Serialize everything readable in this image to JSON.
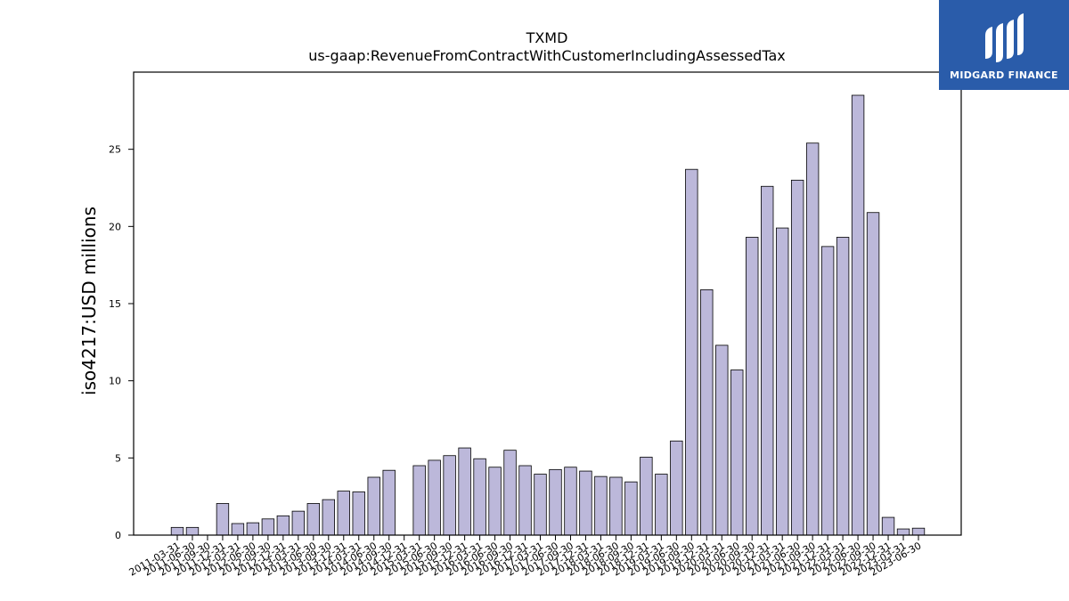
{
  "chart_data": {
    "type": "bar",
    "title": "TXMD",
    "subtitle": "us-gaap:RevenueFromContractWithCustomerIncludingAssessedTax",
    "ylabel": "iso4217:USD  millions",
    "xlabel": "",
    "ylim": [
      0,
      30
    ],
    "yticks": [
      0,
      5,
      10,
      15,
      20,
      25
    ],
    "grid": false,
    "bar_color": "#bcb8da",
    "edge_color": "#000000",
    "categories": [
      "2011-03-31",
      "2011-06-30",
      "2011-09-30",
      "2011-12-31",
      "2012-03-31",
      "2012-06-30",
      "2012-09-30",
      "2012-12-31",
      "2013-03-31",
      "2013-06-30",
      "2013-09-30",
      "2013-12-31",
      "2014-03-31",
      "2014-06-30",
      "2014-09-30",
      "2014-12-31",
      "2015-03-31",
      "2015-06-30",
      "2015-09-30",
      "2015-12-31",
      "2016-03-31",
      "2016-06-30",
      "2016-09-30",
      "2016-12-31",
      "2017-03-31",
      "2017-06-30",
      "2017-09-30",
      "2017-12-31",
      "2018-03-31",
      "2018-06-30",
      "2018-09-30",
      "2018-12-31",
      "2019-03-31",
      "2019-06-30",
      "2019-09-30",
      "2019-12-31",
      "2020-03-31",
      "2020-06-30",
      "2020-09-30",
      "2020-12-31",
      "2021-03-31",
      "2021-06-30",
      "2021-09-30",
      "2021-12-31",
      "2022-03-31",
      "2022-06-30",
      "2022-09-30",
      "2022-12-31",
      "2023-03-31",
      "2023-06-30"
    ],
    "values": [
      0.5,
      0.5,
      0,
      2.05,
      0.75,
      0.8,
      1.05,
      1.25,
      1.55,
      2.05,
      2.3,
      2.85,
      2.8,
      3.75,
      4.2,
      0,
      4.5,
      4.85,
      5.15,
      5.65,
      4.95,
      4.4,
      5.5,
      4.5,
      3.95,
      4.25,
      4.4,
      4.15,
      3.8,
      3.75,
      3.45,
      5.05,
      3.95,
      6.1,
      23.7,
      15.9,
      12.3,
      10.7,
      19.3,
      22.6,
      19.9,
      23.0,
      25.4,
      18.7,
      19.3,
      28.5,
      20.9,
      1.15,
      0.4,
      0.45
    ]
  },
  "logo": {
    "text": "MIDGARD FINANCE",
    "bg_color": "#2a5caa"
  }
}
